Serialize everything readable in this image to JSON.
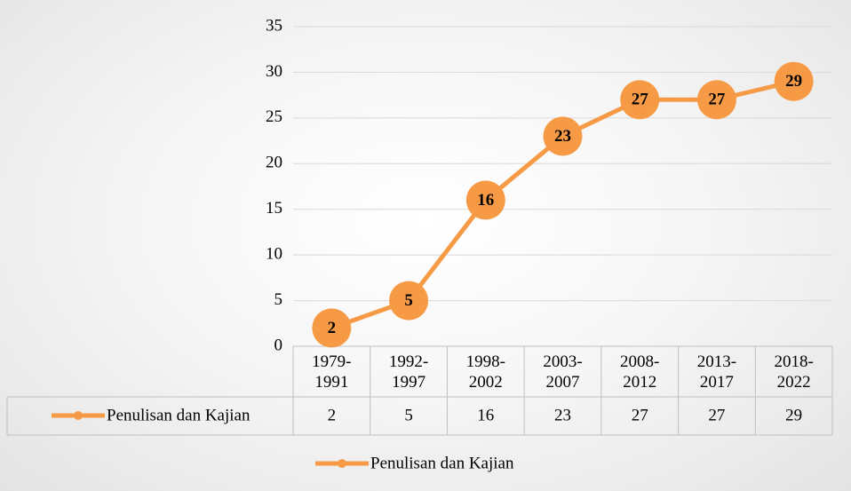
{
  "chart_data": {
    "type": "line",
    "categories": [
      "1979-1991",
      "1992-1997",
      "1998-2002",
      "2003-2007",
      "2008-2012",
      "2013-2017",
      "2018-2022"
    ],
    "series": [
      {
        "name": "Penulisan dan Kajian",
        "color": "#f79a46",
        "values": [
          2,
          5,
          16,
          23,
          27,
          27,
          29
        ]
      }
    ],
    "ylim": [
      0,
      35
    ],
    "yticks": [
      0,
      5,
      10,
      15,
      20,
      25,
      30,
      35
    ],
    "grid": true,
    "data_table": true,
    "legend": "bottom"
  }
}
